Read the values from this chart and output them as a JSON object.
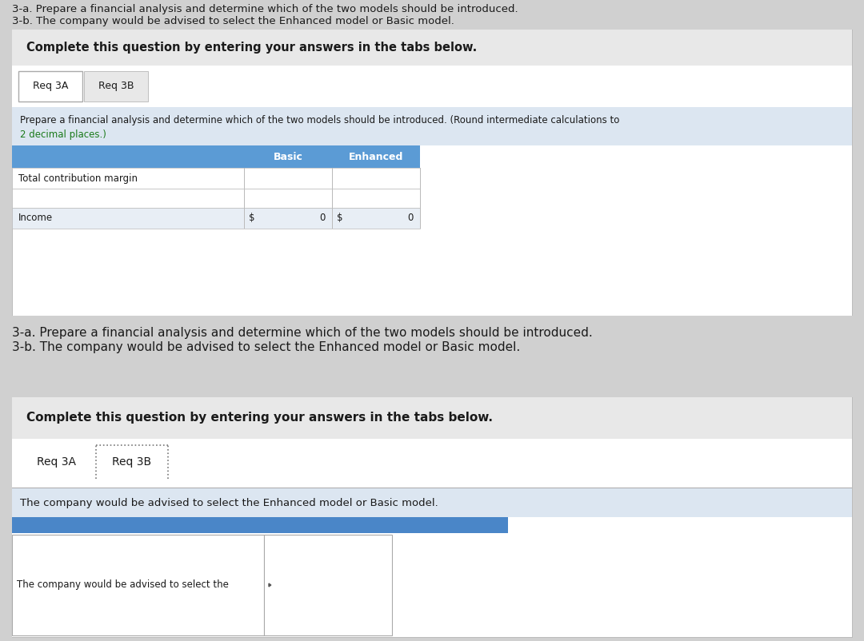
{
  "bg_color": "#d0d0d0",
  "white": "#ffffff",
  "light_gray": "#e8e8e8",
  "medium_gray": "#c8c8c8",
  "dark_gray": "#a0a0a0",
  "blue_header": "#5b9bd5",
  "light_blue": "#dce6f1",
  "text_dark": "#1a1a1a",
  "text_green": "#1a7a1a",
  "intro_line1": "3-a. Prepare a financial analysis and determine which of the two models should be introduced.",
  "intro_line2": "3-b. The company would be advised to select the Enhanced model or Basic model.",
  "complete_text": "Complete this question by entering your answers in the tabs below.",
  "tab1": "Req 3A",
  "tab2": "Req 3B",
  "instruction_text1": "Prepare a financial analysis and determine which of the two models should be introduced. (Round intermediate calculations to",
  "instruction_text2": "2 decimal places.)",
  "col_basic": "Basic",
  "col_enhanced": "Enhanced",
  "row1": "Total contribution margin",
  "row2": "",
  "row3": "Income",
  "val_basic_income": "0",
  "val_enhanced_income": "0",
  "dollar1": "$",
  "dollar2": "$",
  "panel2_intro1": "3-a. Prepare a financial analysis and determine which of the two models should be introduced.",
  "panel2_intro2": "3-b. The company would be advised to select the Enhanced model or Basic model.",
  "panel2_complete": "Complete this question by entering your answers in the tabs below.",
  "panel2_tab1": "Req 3A",
  "panel2_tab2": "Req 3B",
  "panel2_body": "The company would be advised to select the Enhanced model or Basic model.",
  "panel2_input_label": "The company would be advised to select the",
  "panel2_blue_bar_color": "#4a86c8"
}
